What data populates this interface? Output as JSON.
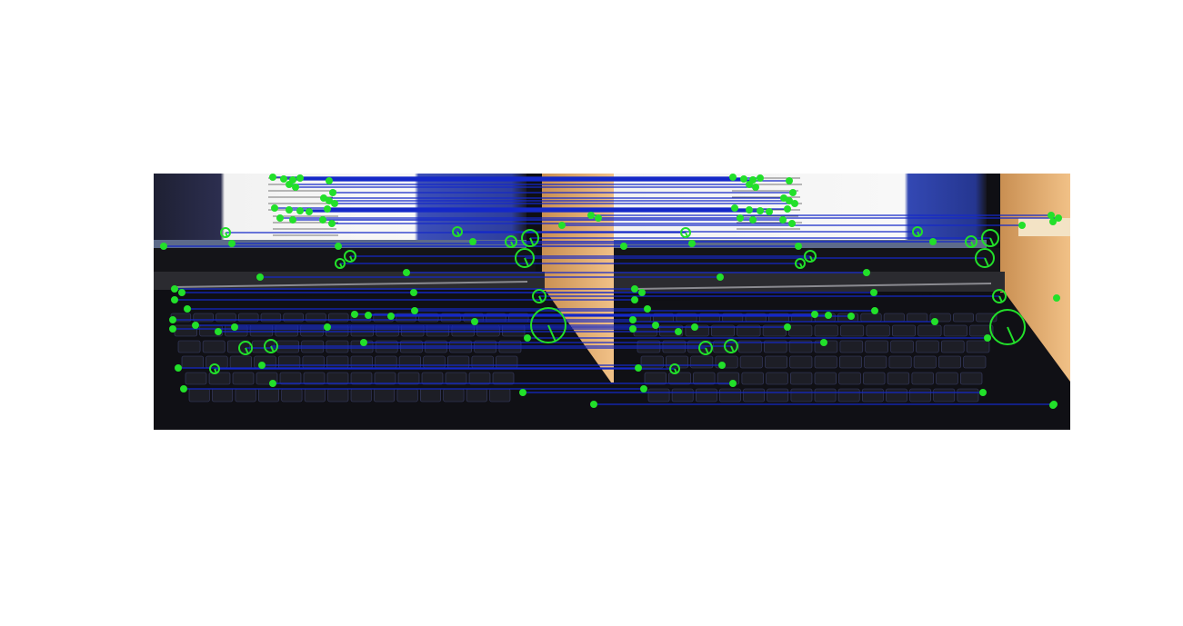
{
  "figure": {
    "type": "feature-matching visualization",
    "panels": 2,
    "colors": {
      "match_line": "#1428c8",
      "keypoint": "#22e02a",
      "background": "#ffffff"
    }
  }
}
